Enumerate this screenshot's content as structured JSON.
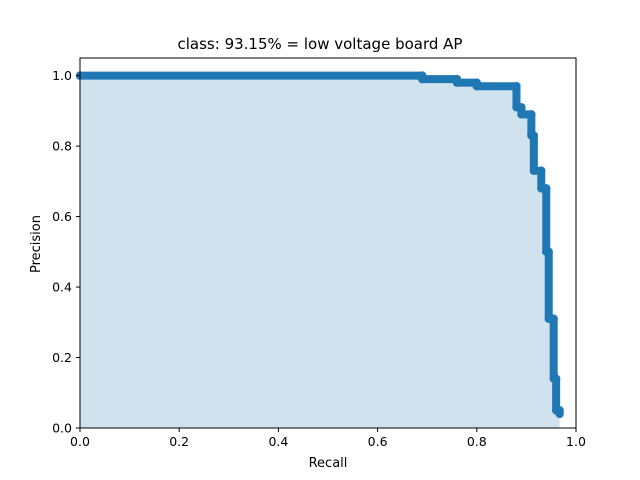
{
  "chart_data": {
    "type": "area",
    "title": "class: 93.15% = low voltage board AP",
    "xlabel": "Recall",
    "ylabel": "Precision",
    "xlim": [
      0.0,
      1.0
    ],
    "ylim": [
      0.0,
      1.05
    ],
    "xticks": [
      "0.0",
      "0.2",
      "0.4",
      "0.6",
      "0.8",
      "1.0"
    ],
    "yticks": [
      "0.0",
      "0.2",
      "0.4",
      "0.6",
      "0.8",
      "1.0"
    ],
    "grid": false,
    "line_color": "#1f77b4",
    "fill_color": "#d1e2ef",
    "series": [
      {
        "x": [
          0.0,
          0.69,
          0.69,
          0.76,
          0.76,
          0.8,
          0.8,
          0.88,
          0.88,
          0.89,
          0.89,
          0.91,
          0.91,
          0.915,
          0.915,
          0.93,
          0.93,
          0.94,
          0.94,
          0.945,
          0.945,
          0.955,
          0.955,
          0.96,
          0.96,
          0.967,
          0.967
        ],
        "y": [
          1.0,
          1.0,
          0.99,
          0.99,
          0.98,
          0.98,
          0.97,
          0.97,
          0.91,
          0.91,
          0.89,
          0.89,
          0.83,
          0.83,
          0.73,
          0.73,
          0.68,
          0.68,
          0.5,
          0.5,
          0.31,
          0.31,
          0.14,
          0.14,
          0.05,
          0.05,
          0.04
        ]
      }
    ]
  }
}
